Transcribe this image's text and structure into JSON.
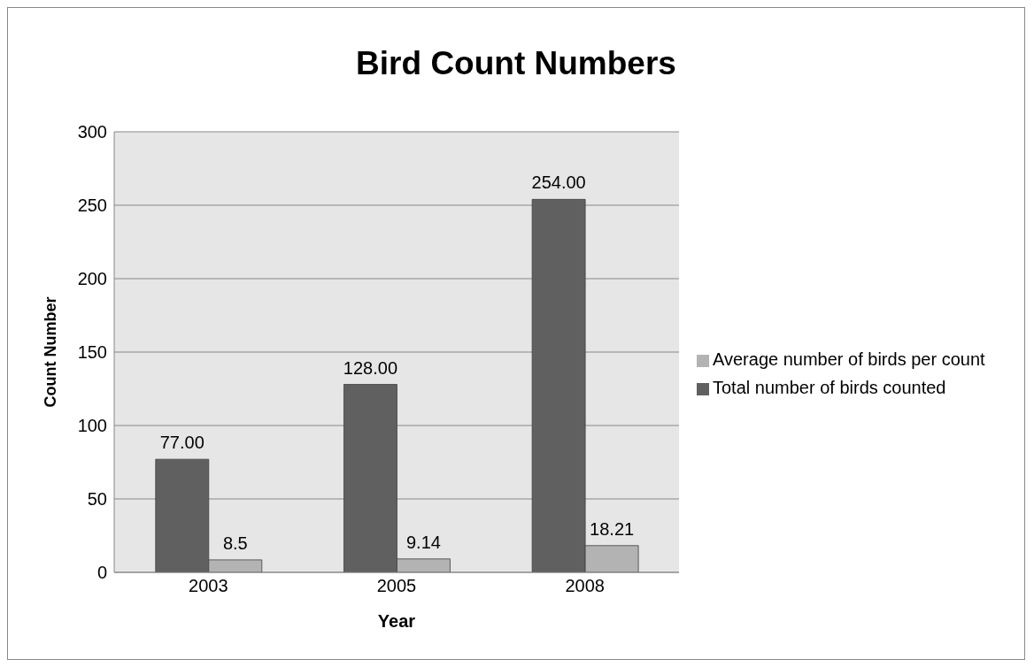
{
  "chart_data": {
    "type": "bar",
    "title": "Bird Count Numbers",
    "xlabel": "Year",
    "ylabel": "Count Number",
    "categories": [
      "2003",
      "2005",
      "2008"
    ],
    "series": [
      {
        "name": "Total number of birds counted",
        "color": "#606060",
        "values": [
          77,
          128,
          254
        ],
        "value_labels": [
          "77.00",
          "128.00",
          "254.00"
        ]
      },
      {
        "name": "Average number of birds per count",
        "color": "#b3b3b3",
        "values": [
          8.5,
          9.14,
          18.21
        ],
        "value_labels": [
          "8.5",
          "9.14",
          "18.21"
        ]
      }
    ],
    "ylim": [
      0,
      300
    ],
    "yticks": [
      0,
      50,
      100,
      150,
      200,
      250,
      300
    ],
    "grid": "y",
    "legend": "right"
  }
}
